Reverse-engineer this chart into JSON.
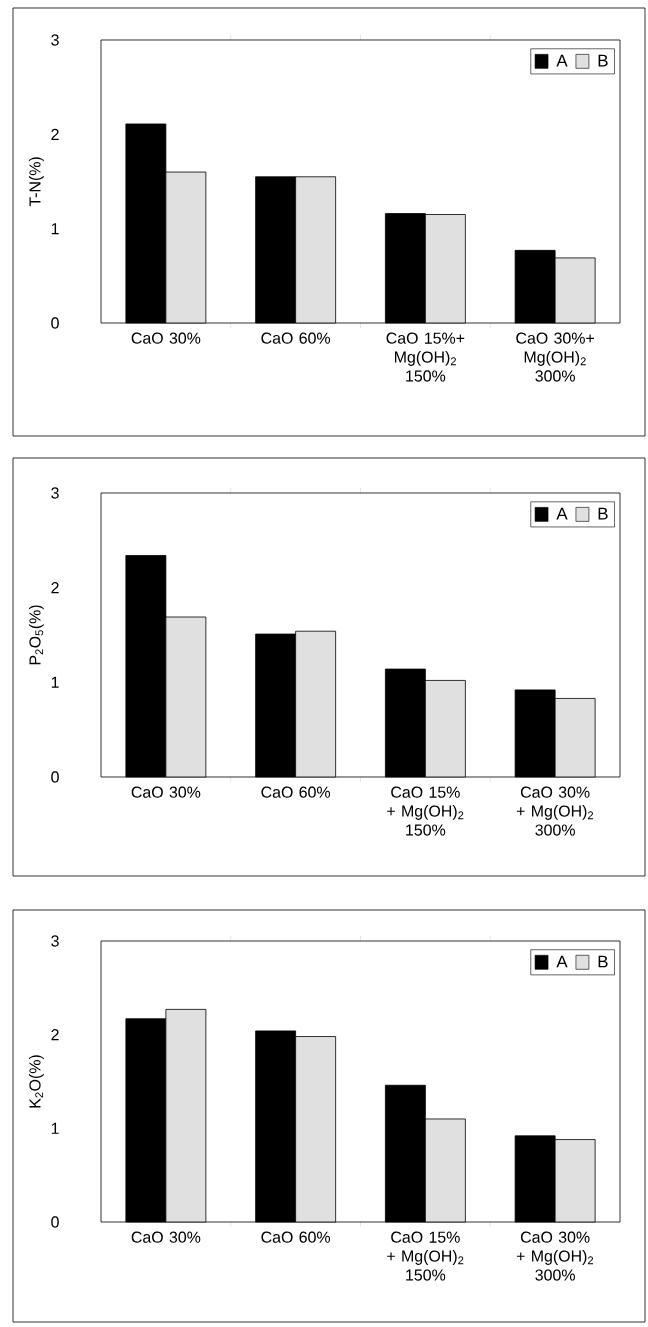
{
  "chart_data": [
    {
      "type": "bar",
      "ylabel": "T-N(%)",
      "categories": [
        "CaO 30%",
        "CaO 60%",
        "CaO 15%+ Mg(OH)$_{2}$ 150%",
        "CaO 30%+ Mg(OH)$_{2}$ 300%"
      ],
      "ylim": [
        0,
        3
      ],
      "yticks": [
        0,
        1,
        2,
        3
      ],
      "legend": "top right",
      "series": [
        {
          "name": "A",
          "color": "#000000",
          "values": [
            2.11,
            1.55,
            1.16,
            0.77
          ]
        },
        {
          "name": "B",
          "color": "#e0e0e0",
          "values": [
            1.6,
            1.55,
            1.15,
            0.69
          ]
        }
      ]
    },
    {
      "type": "bar",
      "ylabel": "P$_{2}$O$_{5}$(%)",
      "categories": [
        "CaO 30%",
        "CaO 60%",
        "CaO 15% + Mg(OH)$_{2}$ 150%",
        "CaO 30% + Mg(OH)$_{2}$ 300%"
      ],
      "ylim": [
        0,
        3
      ],
      "yticks": [
        0,
        1,
        2,
        3
      ],
      "legend": "top right",
      "series": [
        {
          "name": "A",
          "color": "#000000",
          "values": [
            2.34,
            1.51,
            1.14,
            0.92
          ]
        },
        {
          "name": "B",
          "color": "#e0e0e0",
          "values": [
            1.69,
            1.54,
            1.02,
            0.83
          ]
        }
      ]
    },
    {
      "type": "bar",
      "ylabel": "K$_{2}$O(%)",
      "categories": [
        "CaO 30%",
        "CaO 60%",
        "CaO 15% + Mg(OH)$_{2}$ 150%",
        "CaO 30% + Mg(OH)$_{2}$ 300%"
      ],
      "ylim": [
        0,
        3
      ],
      "yticks": [
        0,
        1,
        2,
        3
      ],
      "legend": "top right",
      "series": [
        {
          "name": "A",
          "color": "#000000",
          "values": [
            2.17,
            2.04,
            1.46,
            0.92
          ]
        },
        {
          "name": "B",
          "color": "#e0e0e0",
          "values": [
            2.27,
            1.98,
            1.1,
            0.88
          ]
        }
      ]
    }
  ]
}
